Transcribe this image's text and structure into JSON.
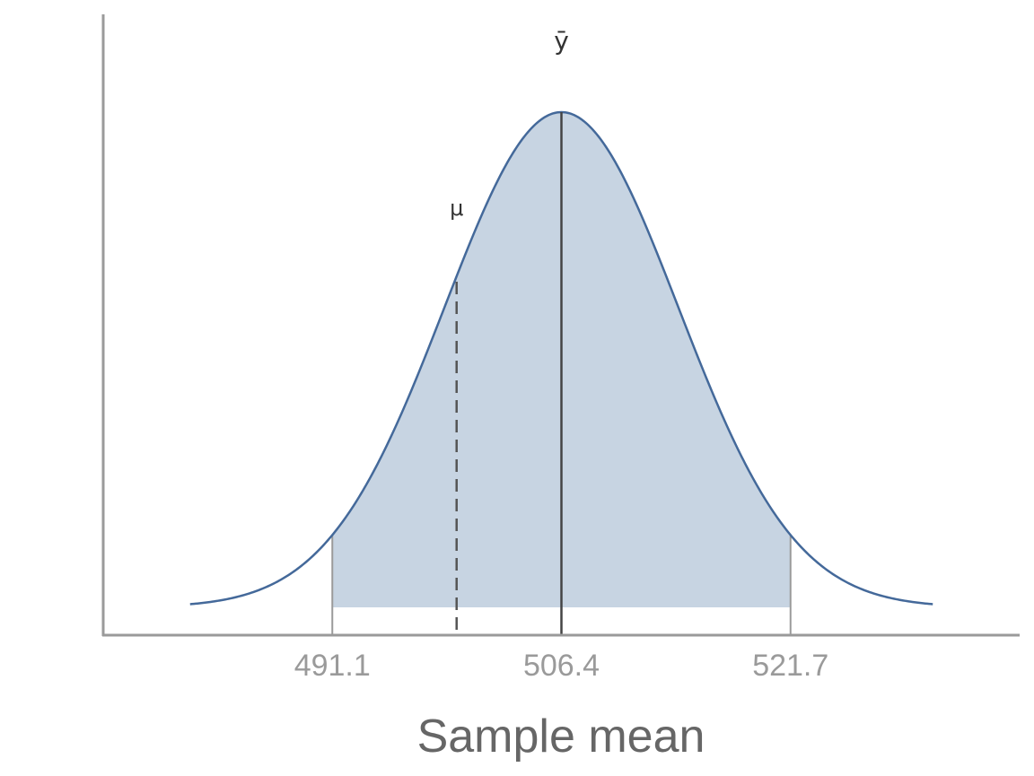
{
  "chart_data": {
    "type": "area",
    "xlabel": "Sample mean",
    "ylabel": "",
    "distribution": {
      "mean": 506.4,
      "sd": 7.8
    },
    "xlim": [
      475.8,
      537.0
    ],
    "curve_range": [
      481.6,
      531.2
    ],
    "shaded_interval": [
      491.1,
      521.7
    ],
    "x_ticks": [
      491.1,
      506.4,
      521.7
    ],
    "x_tick_labels": [
      "491.1",
      "506.4",
      "521.7"
    ],
    "markers": [
      {
        "label": "ȳ",
        "x": 506.4,
        "style": "solid"
      },
      {
        "label": "μ",
        "x": 499.4,
        "style": "dashed"
      }
    ],
    "grid": false,
    "colors": {
      "curve": "#44699a",
      "fill": "#c7d4e2",
      "axis": "#9a9a9a",
      "marker": "#555555"
    }
  }
}
